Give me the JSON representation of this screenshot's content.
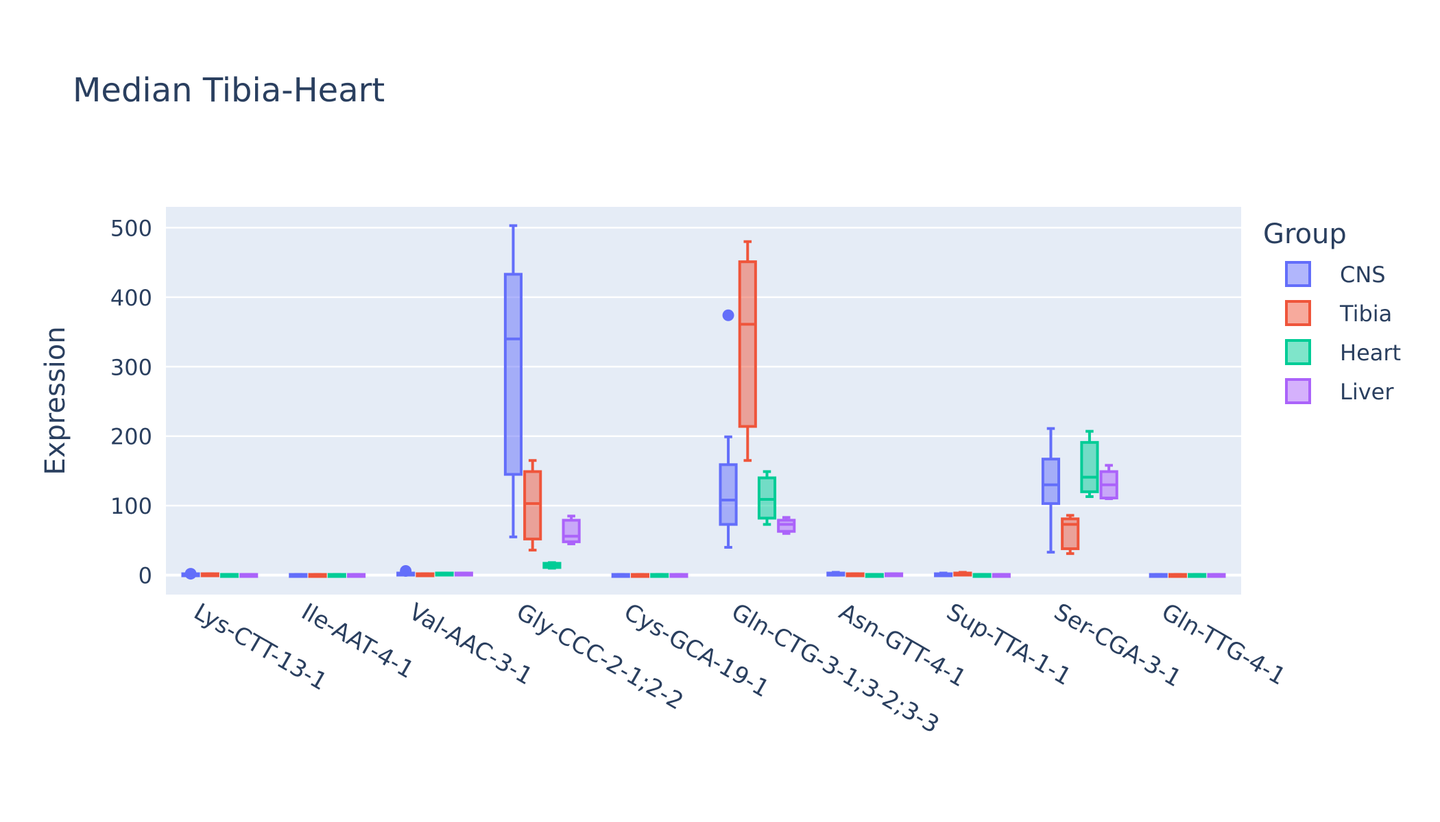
{
  "chart_data": {
    "type": "box",
    "title": "Median Tibia-Heart",
    "xlabel": "",
    "ylabel": "Expression",
    "ylim": [
      -28,
      530
    ],
    "yticks": [
      0,
      100,
      200,
      300,
      400,
      500
    ],
    "grid": true,
    "legend": {
      "title": "Group",
      "placement": "right"
    },
    "categories": [
      "Lys-CTT-13-1",
      "Ile-AAT-4-1",
      "Val-AAC-3-1",
      "Gly-CCC-2-1;2-2",
      "Cys-GCA-19-1",
      "Gln-CTG-3-1;3-2;3-3",
      "Asn-GTT-4-1",
      "Sup-TTA-1-1",
      "Ser-CGA-3-1",
      "Gln-TTG-4-1"
    ],
    "series": [
      {
        "name": "CNS",
        "color": "#636efa",
        "boxes": [
          {
            "min": 0,
            "q1": 0,
            "median": 1,
            "q3": 2,
            "max": 3,
            "outliers": [
              2
            ]
          },
          {
            "min": 0,
            "q1": 0,
            "median": 0,
            "q3": 1,
            "max": 1,
            "outliers": []
          },
          {
            "min": 1,
            "q1": 1,
            "median": 2,
            "q3": 3,
            "max": 4,
            "outliers": [
              6
            ]
          },
          {
            "min": 55,
            "q1": 145,
            "median": 340,
            "q3": 433,
            "max": 503,
            "outliers": []
          },
          {
            "min": 0,
            "q1": 0,
            "median": 0,
            "q3": 1,
            "max": 1,
            "outliers": []
          },
          {
            "min": 40,
            "q1": 73,
            "median": 108,
            "q3": 159,
            "max": 199,
            "outliers": [
              374
            ]
          },
          {
            "min": 0,
            "q1": 0,
            "median": 2,
            "q3": 3,
            "max": 4,
            "outliers": []
          },
          {
            "min": 0,
            "q1": 0,
            "median": 1,
            "q3": 2,
            "max": 3,
            "outliers": []
          },
          {
            "min": 33,
            "q1": 103,
            "median": 130,
            "q3": 167,
            "max": 211,
            "outliers": []
          },
          {
            "min": 0,
            "q1": 0,
            "median": 0,
            "q3": 1,
            "max": 1,
            "outliers": []
          }
        ]
      },
      {
        "name": "Tibia",
        "color": "#ef553b",
        "boxes": [
          {
            "min": 0,
            "q1": 0,
            "median": 1,
            "q3": 2,
            "max": 2,
            "outliers": []
          },
          {
            "min": 0,
            "q1": 0,
            "median": 0,
            "q3": 1,
            "max": 1,
            "outliers": []
          },
          {
            "min": 0,
            "q1": 0,
            "median": 1,
            "q3": 2,
            "max": 2,
            "outliers": []
          },
          {
            "min": 36,
            "q1": 52,
            "median": 103,
            "q3": 149,
            "max": 165,
            "outliers": []
          },
          {
            "min": 0,
            "q1": 0,
            "median": 0,
            "q3": 1,
            "max": 1,
            "outliers": []
          },
          {
            "min": 165,
            "q1": 214,
            "median": 361,
            "q3": 451,
            "max": 480,
            "outliers": []
          },
          {
            "min": 0,
            "q1": 0,
            "median": 1,
            "q3": 2,
            "max": 2,
            "outliers": []
          },
          {
            "min": 1,
            "q1": 1,
            "median": 2,
            "q3": 3,
            "max": 4,
            "outliers": []
          },
          {
            "min": 31,
            "q1": 38,
            "median": 73,
            "q3": 81,
            "max": 86,
            "outliers": []
          },
          {
            "min": 0,
            "q1": 0,
            "median": 0,
            "q3": 1,
            "max": 1,
            "outliers": []
          }
        ]
      },
      {
        "name": "Heart",
        "color": "#00cc96",
        "boxes": [
          {
            "min": 0,
            "q1": 0,
            "median": 1,
            "q3": 1,
            "max": 1,
            "outliers": []
          },
          {
            "min": 0,
            "q1": 0,
            "median": 0,
            "q3": 1,
            "max": 1,
            "outliers": []
          },
          {
            "min": 1,
            "q1": 1,
            "median": 2,
            "q3": 3,
            "max": 3,
            "outliers": []
          },
          {
            "min": 10,
            "q1": 11,
            "median": 14,
            "q3": 17,
            "max": 18,
            "outliers": []
          },
          {
            "min": 0,
            "q1": 0,
            "median": 0,
            "q3": 1,
            "max": 1,
            "outliers": []
          },
          {
            "min": 73,
            "q1": 82,
            "median": 109,
            "q3": 140,
            "max": 149,
            "outliers": []
          },
          {
            "min": 0,
            "q1": 0,
            "median": 1,
            "q3": 1,
            "max": 1,
            "outliers": []
          },
          {
            "min": 0,
            "q1": 0,
            "median": 1,
            "q3": 1,
            "max": 1,
            "outliers": []
          },
          {
            "min": 113,
            "q1": 120,
            "median": 141,
            "q3": 191,
            "max": 207,
            "outliers": []
          },
          {
            "min": 0,
            "q1": 0,
            "median": 0,
            "q3": 1,
            "max": 1,
            "outliers": []
          }
        ]
      },
      {
        "name": "Liver",
        "color": "#ab63fa",
        "boxes": [
          {
            "min": 0,
            "q1": 0,
            "median": 1,
            "q3": 1,
            "max": 1,
            "outliers": []
          },
          {
            "min": 0,
            "q1": 0,
            "median": 0,
            "q3": 1,
            "max": 1,
            "outliers": []
          },
          {
            "min": 1,
            "q1": 1,
            "median": 2,
            "q3": 3,
            "max": 3,
            "outliers": []
          },
          {
            "min": 45,
            "q1": 48,
            "median": 56,
            "q3": 79,
            "max": 85,
            "outliers": []
          },
          {
            "min": 0,
            "q1": 0,
            "median": 0,
            "q3": 1,
            "max": 1,
            "outliers": []
          },
          {
            "min": 60,
            "q1": 63,
            "median": 73,
            "q3": 79,
            "max": 83,
            "outliers": []
          },
          {
            "min": 0,
            "q1": 0,
            "median": 1,
            "q3": 2,
            "max": 2,
            "outliers": []
          },
          {
            "min": 0,
            "q1": 0,
            "median": 1,
            "q3": 1,
            "max": 1,
            "outliers": []
          },
          {
            "min": 110,
            "q1": 111,
            "median": 130,
            "q3": 149,
            "max": 158,
            "outliers": []
          },
          {
            "min": 0,
            "q1": 0,
            "median": 0,
            "q3": 1,
            "max": 1,
            "outliers": []
          }
        ]
      }
    ]
  }
}
